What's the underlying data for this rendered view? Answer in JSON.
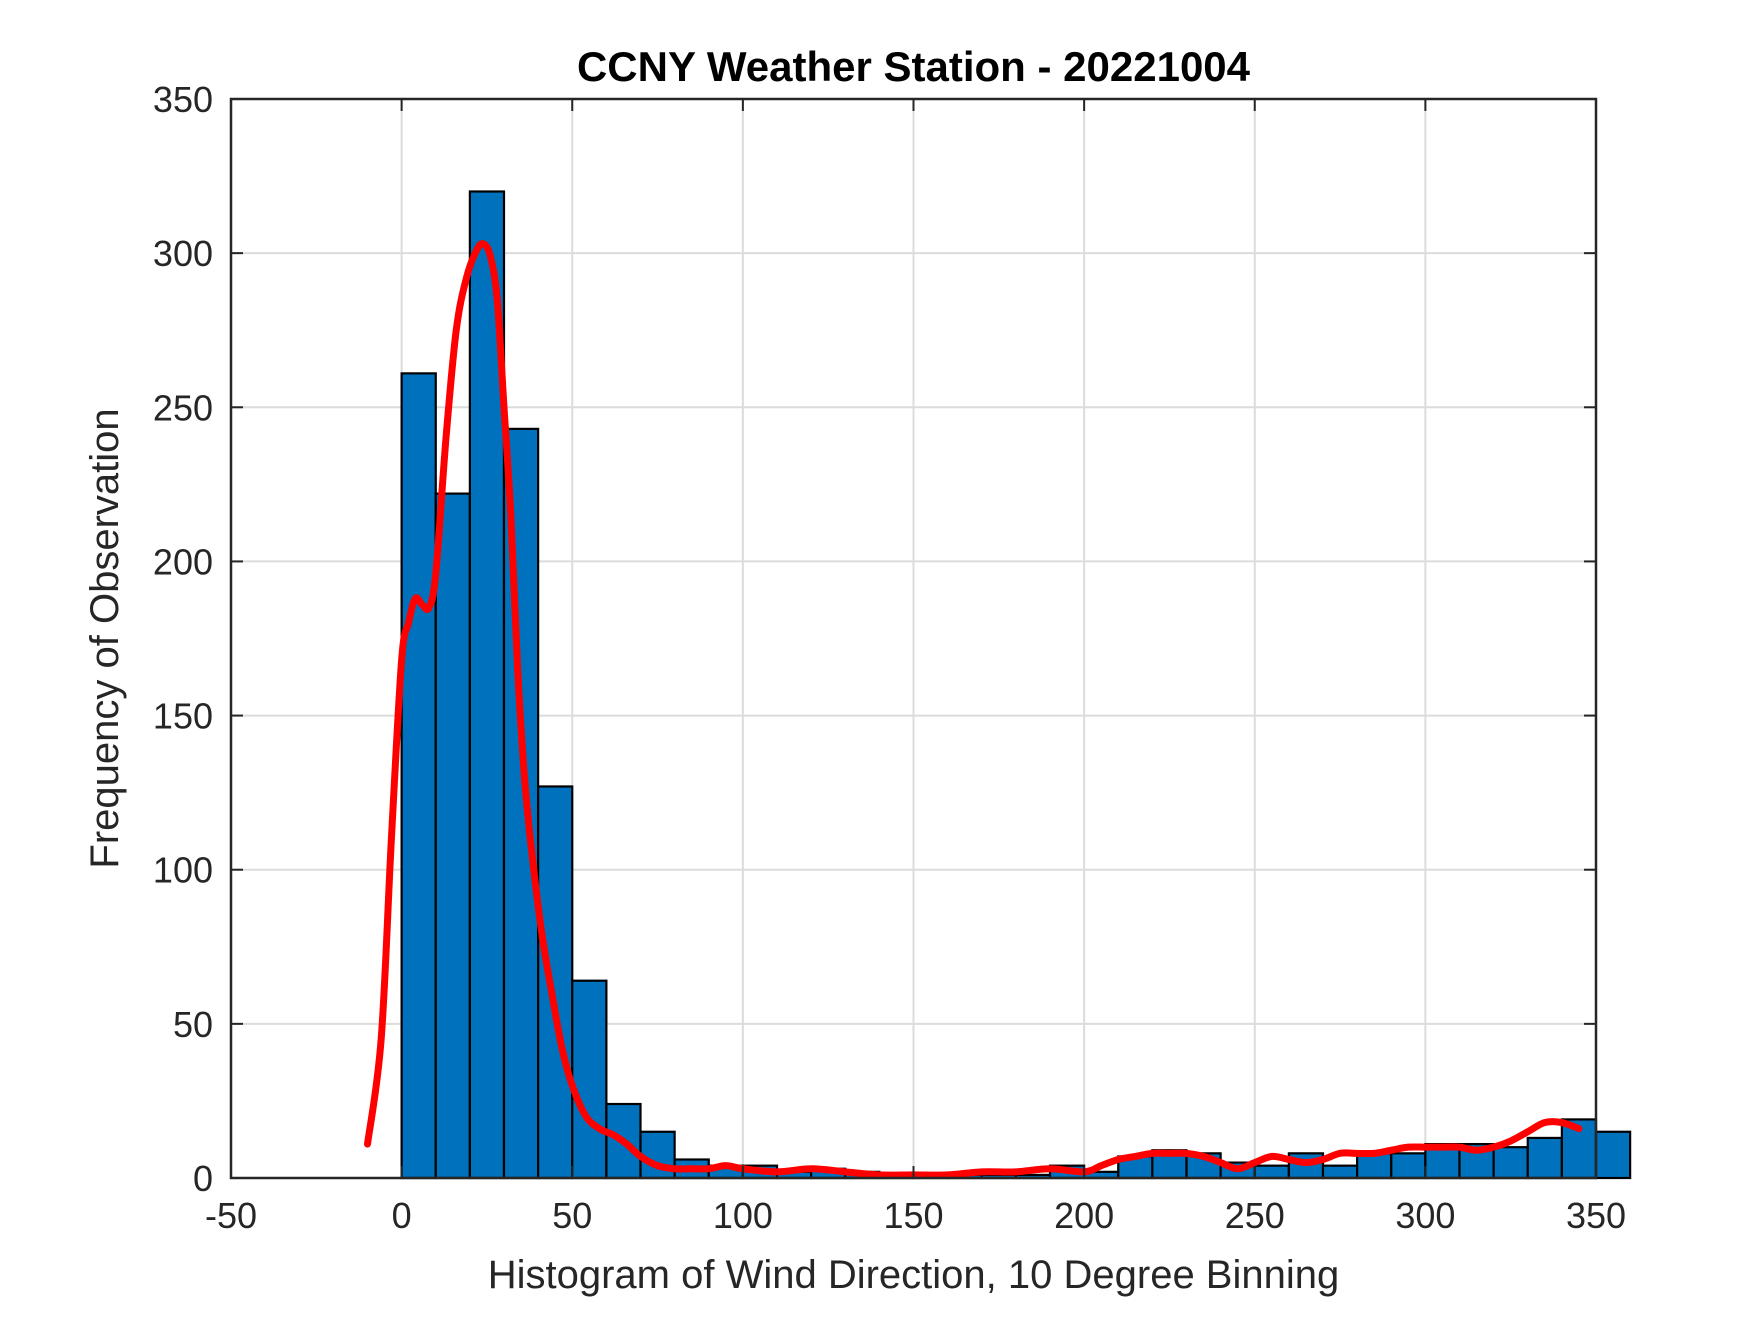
{
  "chart_data": {
    "type": "bar",
    "title": "CCNY Weather Station - 20221004",
    "xlabel": "Histogram of Wind Direction, 10 Degree Binning",
    "ylabel": "Frequency of Observation",
    "xlim": [
      -50,
      350
    ],
    "ylim": [
      0,
      350
    ],
    "xticks": [
      "-50",
      "0",
      "50",
      "100",
      "150",
      "200",
      "250",
      "300",
      "350"
    ],
    "yticks": [
      "0",
      "50",
      "100",
      "150",
      "200",
      "250",
      "300",
      "350"
    ],
    "grid": true,
    "bin_width": 10,
    "bin_edges_start": 0,
    "bar_color": "#0072BD",
    "bar_edge_color": "#000000",
    "series": [
      {
        "type": "bar",
        "values": [
          261,
          222,
          320,
          243,
          127,
          64,
          24,
          15,
          6,
          4,
          4,
          2,
          3,
          2,
          1,
          1,
          1,
          1,
          1,
          4,
          2,
          7,
          9,
          8,
          5,
          4,
          8,
          4,
          8,
          8,
          11,
          11,
          10,
          13,
          19,
          15
        ]
      },
      {
        "type": "line",
        "color": "#FF0000",
        "x": [
          -10,
          -6,
          -3,
          0,
          2,
          4,
          6,
          8,
          10,
          13,
          16,
          19,
          22,
          24,
          26,
          28,
          30,
          32,
          34,
          36,
          38,
          41,
          44,
          47,
          50,
          54,
          58,
          62,
          66,
          70,
          75,
          80,
          85,
          90,
          95,
          100,
          110,
          120,
          130,
          140,
          150,
          160,
          170,
          180,
          190,
          200,
          205,
          210,
          215,
          220,
          225,
          230,
          235,
          240,
          245,
          250,
          255,
          260,
          265,
          270,
          275,
          280,
          285,
          290,
          295,
          300,
          305,
          310,
          315,
          320,
          325,
          330,
          335,
          340,
          345
        ],
        "y": [
          11,
          45,
          110,
          168,
          180,
          188,
          186,
          185,
          196,
          240,
          275,
          292,
          301,
          303,
          299,
          285,
          250,
          215,
          165,
          130,
          107,
          80,
          60,
          42,
          30,
          20,
          16,
          14,
          11,
          7,
          4,
          3,
          3,
          3,
          4,
          3,
          2,
          3,
          2,
          1,
          1,
          1,
          2,
          2,
          3,
          2,
          4,
          6,
          7,
          8,
          8,
          8,
          7,
          5,
          3,
          5,
          7,
          6,
          5,
          6,
          8,
          8,
          8,
          9,
          10,
          10,
          10,
          10,
          9,
          10,
          12,
          15,
          18,
          18,
          16
        ]
      }
    ]
  }
}
